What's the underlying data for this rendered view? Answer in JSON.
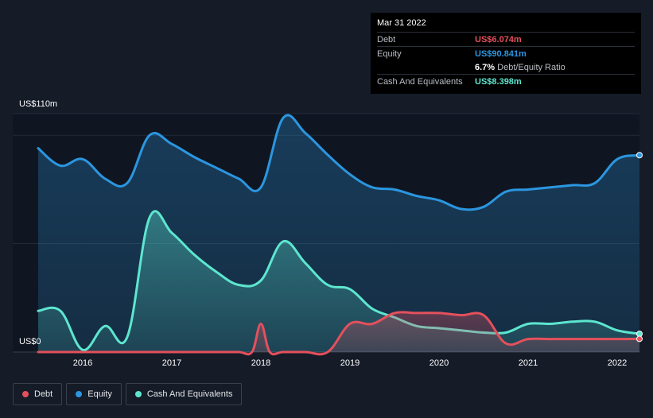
{
  "colors": {
    "debt": "#e4505c",
    "equity": "#2b96e0",
    "cash": "#5de6cf",
    "background": "#151b27"
  },
  "chart_data": {
    "type": "area",
    "title": "",
    "xlabel": "",
    "ylabel": "",
    "ylim": [
      0,
      110
    ],
    "xlim": [
      2015.5,
      2022.25
    ],
    "y_axis_labels": {
      "top": "US$110m",
      "bottom": "US$0"
    },
    "x_ticks": [
      "2016",
      "2017",
      "2018",
      "2019",
      "2020",
      "2021",
      "2022"
    ],
    "series": [
      {
        "name": "Equity",
        "color_key": "equity",
        "points": [
          [
            2015.5,
            94
          ],
          [
            2015.75,
            86
          ],
          [
            2016.0,
            89
          ],
          [
            2016.25,
            80
          ],
          [
            2016.5,
            78
          ],
          [
            2016.75,
            100
          ],
          [
            2017.0,
            96
          ],
          [
            2017.25,
            90
          ],
          [
            2017.5,
            85
          ],
          [
            2017.75,
            80
          ],
          [
            2018.0,
            76
          ],
          [
            2018.25,
            108
          ],
          [
            2018.5,
            101
          ],
          [
            2018.75,
            91
          ],
          [
            2019.0,
            82
          ],
          [
            2019.25,
            76
          ],
          [
            2019.5,
            75
          ],
          [
            2019.75,
            72
          ],
          [
            2020.0,
            70
          ],
          [
            2020.25,
            66
          ],
          [
            2020.5,
            67
          ],
          [
            2020.75,
            74
          ],
          [
            2021.0,
            75
          ],
          [
            2021.25,
            76
          ],
          [
            2021.5,
            77
          ],
          [
            2021.75,
            78
          ],
          [
            2022.0,
            89
          ],
          [
            2022.25,
            90.841
          ]
        ]
      },
      {
        "name": "Cash And Equivalents",
        "color_key": "cash",
        "points": [
          [
            2015.5,
            19
          ],
          [
            2015.75,
            19
          ],
          [
            2016.0,
            1
          ],
          [
            2016.25,
            12
          ],
          [
            2016.5,
            7
          ],
          [
            2016.75,
            62
          ],
          [
            2017.0,
            55
          ],
          [
            2017.25,
            45
          ],
          [
            2017.5,
            37
          ],
          [
            2017.75,
            31
          ],
          [
            2018.0,
            33
          ],
          [
            2018.25,
            51
          ],
          [
            2018.5,
            41
          ],
          [
            2018.75,
            31
          ],
          [
            2019.0,
            29
          ],
          [
            2019.25,
            20
          ],
          [
            2019.5,
            16
          ],
          [
            2019.75,
            12
          ],
          [
            2020.0,
            11
          ],
          [
            2020.25,
            10
          ],
          [
            2020.5,
            9
          ],
          [
            2020.75,
            9
          ],
          [
            2021.0,
            13
          ],
          [
            2021.25,
            13
          ],
          [
            2021.5,
            14
          ],
          [
            2021.75,
            14
          ],
          [
            2022.0,
            10
          ],
          [
            2022.25,
            8.398
          ]
        ]
      },
      {
        "name": "Debt",
        "color_key": "debt",
        "points": [
          [
            2015.5,
            0
          ],
          [
            2015.75,
            0
          ],
          [
            2016.0,
            0
          ],
          [
            2016.25,
            0
          ],
          [
            2016.5,
            0
          ],
          [
            2016.75,
            0
          ],
          [
            2017.0,
            0
          ],
          [
            2017.25,
            0
          ],
          [
            2017.5,
            0
          ],
          [
            2017.75,
            0
          ],
          [
            2017.9,
            0
          ],
          [
            2018.0,
            13
          ],
          [
            2018.1,
            0
          ],
          [
            2018.25,
            0
          ],
          [
            2018.5,
            0
          ],
          [
            2018.75,
            0
          ],
          [
            2019.0,
            13
          ],
          [
            2019.25,
            13
          ],
          [
            2019.5,
            18
          ],
          [
            2019.75,
            18
          ],
          [
            2020.0,
            18
          ],
          [
            2020.25,
            17
          ],
          [
            2020.5,
            17
          ],
          [
            2020.75,
            4
          ],
          [
            2021.0,
            6
          ],
          [
            2021.25,
            6
          ],
          [
            2021.5,
            6
          ],
          [
            2021.75,
            6
          ],
          [
            2022.0,
            6
          ],
          [
            2022.25,
            6.074
          ]
        ]
      }
    ]
  },
  "tooltip": {
    "date": "Mar 31 2022",
    "rows": [
      {
        "label": "Debt",
        "value": "US$6.074m",
        "color_key": "debt"
      },
      {
        "label": "Equity",
        "value": "US$90.841m",
        "color_key": "equity"
      },
      {
        "label": "",
        "value": "6.7%",
        "suffix": "Debt/Equity Ratio",
        "color_key": "white"
      },
      {
        "label": "Cash And Equivalents",
        "value": "US$8.398m",
        "color_key": "cash"
      }
    ]
  },
  "legend": [
    {
      "label": "Debt",
      "color_key": "debt"
    },
    {
      "label": "Equity",
      "color_key": "equity"
    },
    {
      "label": "Cash And Equivalents",
      "color_key": "cash"
    }
  ]
}
